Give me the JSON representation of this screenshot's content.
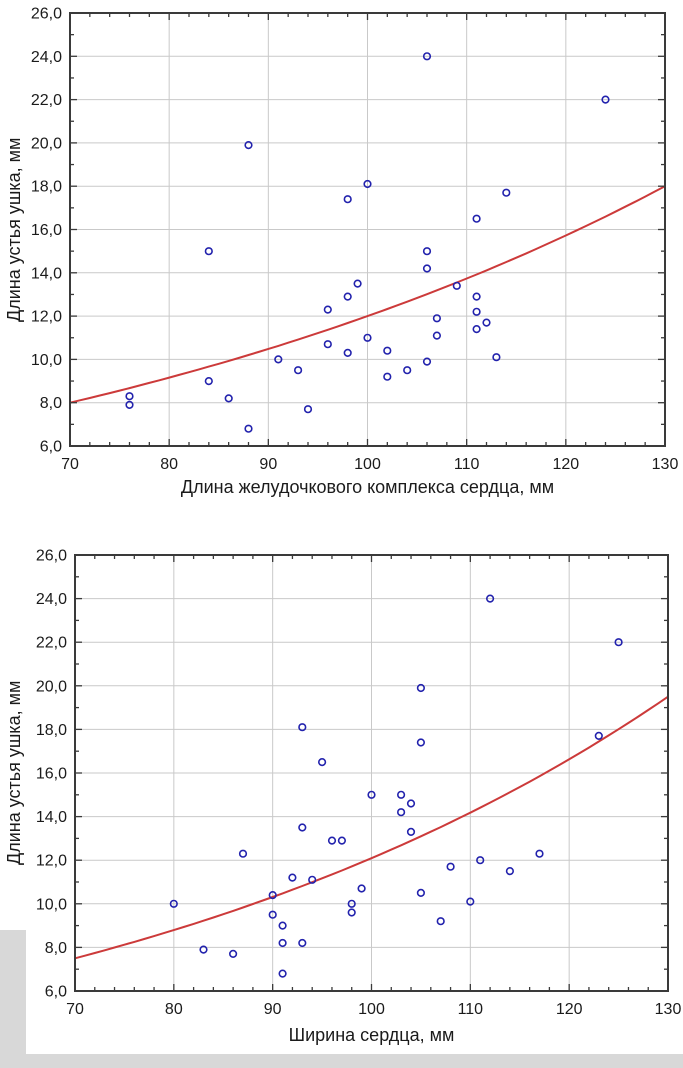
{
  "page": {
    "background": "#ffffff",
    "artifact_color": "#d8d8d8"
  },
  "style": {
    "frame_color": "#3a3a3a",
    "grid_color": "#c9c9c9",
    "tick_color": "#3a3a3a",
    "text_color": "#1b1b1b",
    "marker_color": "#2222ad"
  },
  "chart_data": [
    {
      "type": "scatter",
      "title": "",
      "xlabel": "Длина желудочкового комплекса сердца, мм",
      "ylabel": "Длина устья ушка, мм",
      "xlim": [
        70,
        130
      ],
      "ylim": [
        6,
        26
      ],
      "grid": true,
      "x_ticks": [
        {
          "v": 70,
          "label": "70"
        },
        {
          "v": 80,
          "label": "80"
        },
        {
          "v": 90,
          "label": "90"
        },
        {
          "v": 100,
          "label": "100"
        },
        {
          "v": 110,
          "label": "110"
        },
        {
          "v": 120,
          "label": "120"
        },
        {
          "v": 130,
          "label": "130"
        }
      ],
      "y_ticks": [
        {
          "v": 6,
          "label": "6,0"
        },
        {
          "v": 8,
          "label": "8,0"
        },
        {
          "v": 10,
          "label": "10,0"
        },
        {
          "v": 12,
          "label": "12,0"
        },
        {
          "v": 14,
          "label": "14,0"
        },
        {
          "v": 16,
          "label": "16,0"
        },
        {
          "v": 18,
          "label": "18,0"
        },
        {
          "v": 20,
          "label": "20,0"
        },
        {
          "v": 22,
          "label": "22,0"
        },
        {
          "v": 24,
          "label": "24,0"
        },
        {
          "v": 26,
          "label": "26,0"
        }
      ],
      "x_minor_step": 2,
      "y_minor_step": 1,
      "trend": {
        "shape": "exponential",
        "color": "#cc3a3a",
        "x_start": 70,
        "y_start": 8.0,
        "x_end": 130,
        "y_end": 18.0
      },
      "points": [
        [
          76,
          8.3
        ],
        [
          76,
          7.9
        ],
        [
          84,
          15.0
        ],
        [
          84,
          9.0
        ],
        [
          86,
          8.2
        ],
        [
          88,
          19.9
        ],
        [
          88,
          6.8
        ],
        [
          91,
          10.0
        ],
        [
          93,
          9.5
        ],
        [
          94,
          7.7
        ],
        [
          96,
          12.3
        ],
        [
          96,
          10.7
        ],
        [
          98,
          17.4
        ],
        [
          98,
          12.9
        ],
        [
          98,
          10.3
        ],
        [
          99,
          13.5
        ],
        [
          100,
          18.1
        ],
        [
          100,
          11.0
        ],
        [
          102,
          10.4
        ],
        [
          102,
          9.2
        ],
        [
          104,
          9.5
        ],
        [
          106,
          24.0
        ],
        [
          106,
          15.0
        ],
        [
          106,
          14.2
        ],
        [
          106,
          9.9
        ],
        [
          107,
          11.9
        ],
        [
          107,
          11.1
        ],
        [
          109,
          13.4
        ],
        [
          111,
          16.5
        ],
        [
          111,
          12.9
        ],
        [
          111,
          12.2
        ],
        [
          111,
          11.4
        ],
        [
          112,
          11.7
        ],
        [
          113,
          10.1
        ],
        [
          114,
          17.7
        ],
        [
          124,
          22.0
        ]
      ]
    },
    {
      "type": "scatter",
      "title": "",
      "xlabel": "Ширина сердца, мм",
      "ylabel": "Длина устья ушка, мм",
      "xlim": [
        70,
        130
      ],
      "ylim": [
        6,
        26
      ],
      "grid": true,
      "x_ticks": [
        {
          "v": 70,
          "label": "70"
        },
        {
          "v": 80,
          "label": "80"
        },
        {
          "v": 90,
          "label": "90"
        },
        {
          "v": 100,
          "label": "100"
        },
        {
          "v": 110,
          "label": "110"
        },
        {
          "v": 120,
          "label": "120"
        },
        {
          "v": 130,
          "label": "130"
        }
      ],
      "y_ticks": [
        {
          "v": 6,
          "label": "6,0"
        },
        {
          "v": 8,
          "label": "8,0"
        },
        {
          "v": 10,
          "label": "10,0"
        },
        {
          "v": 12,
          "label": "12,0"
        },
        {
          "v": 14,
          "label": "14,0"
        },
        {
          "v": 16,
          "label": "16,0"
        },
        {
          "v": 18,
          "label": "18,0"
        },
        {
          "v": 20,
          "label": "20,0"
        },
        {
          "v": 22,
          "label": "22,0"
        },
        {
          "v": 24,
          "label": "24,0"
        },
        {
          "v": 26,
          "label": "26,0"
        }
      ],
      "x_minor_step": 2,
      "y_minor_step": 1,
      "trend": {
        "shape": "exponential",
        "color": "#cc3a3a",
        "x_start": 70,
        "y_start": 7.5,
        "x_end": 130,
        "y_end": 19.5
      },
      "points": [
        [
          80,
          10.0
        ],
        [
          83,
          7.9
        ],
        [
          86,
          7.7
        ],
        [
          87,
          12.3
        ],
        [
          90,
          10.4
        ],
        [
          90,
          9.5
        ],
        [
          91,
          9.0
        ],
        [
          91,
          8.2
        ],
        [
          91,
          6.8
        ],
        [
          92,
          11.2
        ],
        [
          93,
          18.1
        ],
        [
          93,
          13.5
        ],
        [
          93,
          8.2
        ],
        [
          94,
          11.1
        ],
        [
          95,
          16.5
        ],
        [
          96,
          12.9
        ],
        [
          97,
          12.9
        ],
        [
          98,
          10.0
        ],
        [
          98,
          9.6
        ],
        [
          99,
          10.7
        ],
        [
          100,
          15.0
        ],
        [
          103,
          15.0
        ],
        [
          103,
          14.2
        ],
        [
          104,
          14.6
        ],
        [
          104,
          13.3
        ],
        [
          105,
          19.9
        ],
        [
          105,
          17.4
        ],
        [
          105,
          10.5
        ],
        [
          107,
          9.2
        ],
        [
          108,
          11.7
        ],
        [
          110,
          10.1
        ],
        [
          111,
          12.0
        ],
        [
          112,
          24.0
        ],
        [
          114,
          11.5
        ],
        [
          117,
          12.3
        ],
        [
          123,
          17.7
        ],
        [
          125,
          22.0
        ]
      ]
    }
  ]
}
